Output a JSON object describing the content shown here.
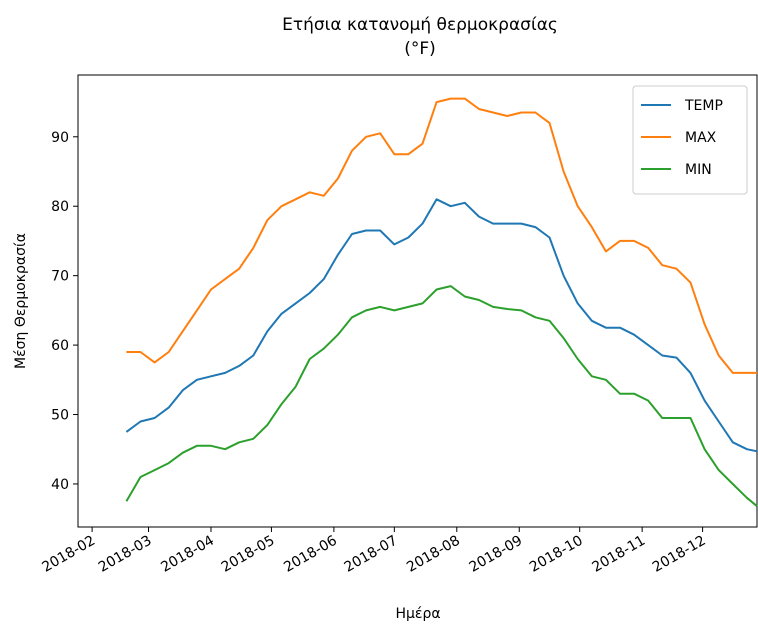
{
  "chart_data": {
    "type": "line",
    "title": [
      "Ετήσια κατανομή θερμοκρασίας",
      "(°F)"
    ],
    "xlabel": "Ημέρα",
    "ylabel": "Μέση Θερμοκρασία",
    "x": [
      49,
      56,
      63,
      70,
      77,
      84,
      91,
      98,
      105,
      112,
      119,
      126,
      133,
      140,
      147,
      154,
      161,
      168,
      175,
      182,
      189,
      196,
      203,
      210,
      217,
      224,
      231,
      238,
      245,
      252,
      259,
      266,
      273,
      280,
      287,
      294,
      301,
      308,
      315,
      322,
      329,
      336,
      343,
      350,
      357,
      362
    ],
    "series": [
      {
        "name": "TEMP",
        "color": "#1f77b4",
        "values": [
          47.5,
          49,
          49.5,
          51,
          53.5,
          55,
          55.5,
          56,
          57,
          58.5,
          62,
          64.5,
          66,
          67.5,
          69.5,
          73,
          76,
          76.5,
          76.5,
          74.5,
          75.5,
          77.5,
          81,
          80,
          80.5,
          78.5,
          77.5,
          77.5,
          77.5,
          77,
          75.5,
          70,
          66,
          63.5,
          62.5,
          62.5,
          61.5,
          60,
          58.5,
          58.2,
          56,
          52,
          49,
          46,
          45,
          44.7
        ]
      },
      {
        "name": "MAX",
        "color": "#ff7f0e",
        "values": [
          59,
          59,
          57.5,
          59,
          62,
          65,
          68,
          69.5,
          71,
          74,
          78,
          80,
          81,
          82,
          81.5,
          84,
          88,
          90,
          90.5,
          87.5,
          87.5,
          89,
          95,
          95.5,
          95.5,
          94,
          93.5,
          93,
          93.5,
          93.5,
          92,
          85,
          80,
          77,
          73.5,
          75,
          75,
          74,
          71.5,
          71,
          69,
          63,
          58.5,
          56,
          56,
          56
        ]
      },
      {
        "name": "MIN",
        "color": "#2ca02c",
        "values": [
          37.5,
          41,
          42,
          43,
          44.5,
          45.5,
          45.5,
          45,
          46,
          46.5,
          48.5,
          51.5,
          54,
          58,
          59.5,
          61.5,
          64,
          65,
          65.5,
          65,
          65.5,
          66,
          68,
          68.5,
          67,
          66.5,
          65.5,
          65.2,
          65,
          64,
          63.5,
          61,
          58,
          55.5,
          55,
          53,
          53,
          52,
          49.5,
          49.5,
          49.5,
          45,
          42,
          40,
          38,
          36.8
        ]
      }
    ],
    "xlim": [
      25,
      362
    ],
    "xticks": [
      {
        "value": 32,
        "label": "2018-02"
      },
      {
        "value": 60,
        "label": "2018-03"
      },
      {
        "value": 91,
        "label": "2018-04"
      },
      {
        "value": 121,
        "label": "2018-05"
      },
      {
        "value": 152,
        "label": "2018-06"
      },
      {
        "value": 182,
        "label": "2018-07"
      },
      {
        "value": 213,
        "label": "2018-08"
      },
      {
        "value": 244,
        "label": "2018-09"
      },
      {
        "value": 274,
        "label": "2018-10"
      },
      {
        "value": 305,
        "label": "2018-11"
      },
      {
        "value": 335,
        "label": "2018-12"
      }
    ],
    "ylim": [
      33.8,
      98.9
    ],
    "yticks": [
      40,
      50,
      60,
      70,
      80,
      90
    ],
    "grid": false,
    "legend": "upper right"
  }
}
